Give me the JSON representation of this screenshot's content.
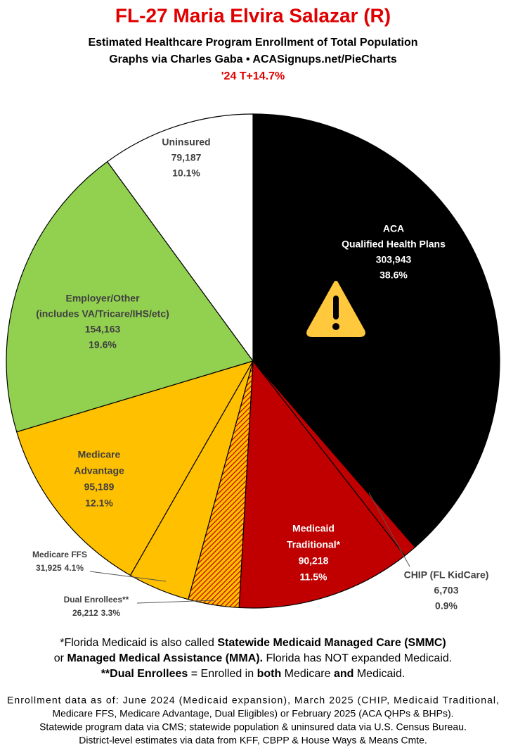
{
  "chart_data": {
    "type": "pie",
    "title": "FL-27 Maria Elvira Salazar (R)",
    "subtitle": [
      "Estimated Healthcare Program Enrollment of Total Population",
      "Graphs via Charles Gaba  •  ACASignups.net/PieCharts"
    ],
    "annotation": "'24 T+14.7%",
    "categories": [
      [
        "ACA",
        "Qualified Health Plans"
      ],
      [
        "CHIP (FL KidCare)"
      ],
      [
        "Medicaid",
        "Traditional*"
      ],
      [
        "Dual Enrollees**"
      ],
      [
        "Medicare FFS"
      ],
      [
        "Medicare",
        "Advantage"
      ],
      [
        "Employer/Other",
        "(includes VA/Tricare/IHS/etc)"
      ],
      [
        "Uninsured"
      ]
    ],
    "values": [
      303943,
      6703,
      90218,
      26212,
      31925,
      95189,
      154163,
      79187
    ],
    "value_labels": [
      "303,943",
      "6,703",
      "90,218",
      "26,212",
      "31,925",
      "95,189",
      "154,163",
      "79,187"
    ],
    "percent_labels": [
      "38.6%",
      "0.9%",
      "11.5%",
      "3.3%",
      "4.1%",
      "12.1%",
      "19.6%",
      "10.1%"
    ],
    "colors": [
      "#000000",
      "#c00000",
      "#c00000",
      "#ffc000",
      "#ffc000",
      "#ffc000",
      "#92d050",
      "#ffffff"
    ],
    "hatched": [
      false,
      false,
      false,
      true,
      false,
      false,
      false,
      false
    ],
    "notes": [
      [
        {
          "text": "*Florida Medicaid is also called ",
          "bold": false
        },
        {
          "text": "Statewide Medicaid Managed Care (SMMC)",
          "bold": true
        }
      ],
      [
        {
          "text": "or ",
          "bold": false
        },
        {
          "text": "Managed Medical Assistance (MMA).",
          "bold": true
        },
        {
          "text": " Florida has NOT expanded Medicaid.",
          "bold": false
        }
      ],
      [
        {
          "text": "**Dual Enrollees",
          "bold": true
        },
        {
          "text": " = Enrolled in ",
          "bold": false
        },
        {
          "text": "both",
          "bold": true
        },
        {
          "text": " Medicare ",
          "bold": false
        },
        {
          "text": "and",
          "bold": true
        },
        {
          "text": " Medicaid.",
          "bold": false
        }
      ]
    ],
    "footer": [
      "Enrollment data as of: June 2024 (Medicaid expansion), March 2025 (CHIP, Medicaid Traditional,",
      "Medicare FFS, Medicare Advantage, Dual Eligibles) or February 2025 (ACA QHPs & BHPs).",
      "Statewide program data via CMS; statewide population & uninsured data via U.S. Census Bureau.",
      "District-level estimates via data from KFF, CBPP & House Ways & Means Cmte."
    ]
  }
}
